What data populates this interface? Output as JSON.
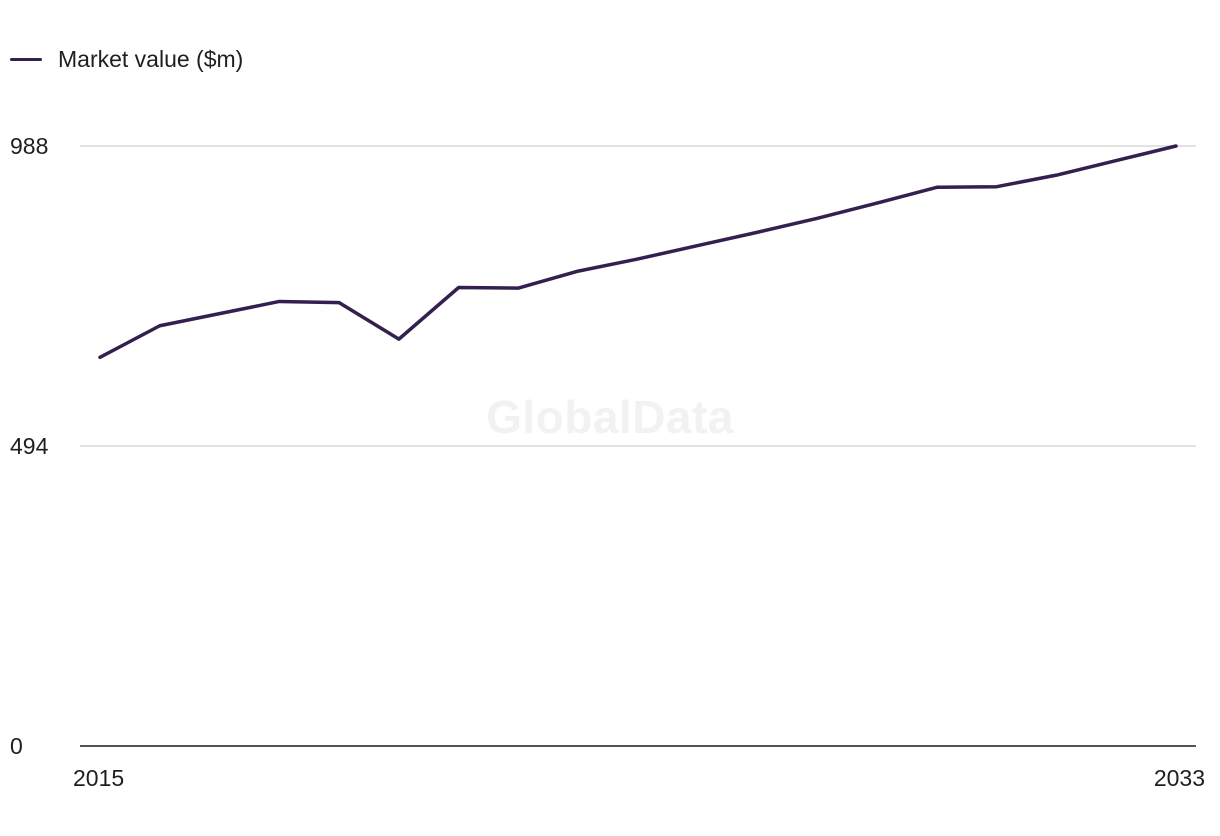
{
  "legend": {
    "label": "Market value ($m)"
  },
  "watermark": "GlobalData",
  "colors": {
    "series": "#33204f",
    "grid": "#d9d9d9",
    "axis": "#1a1a1a"
  },
  "chart_data": {
    "type": "line",
    "title": "",
    "xlabel": "",
    "ylabel": "",
    "x": [
      2015,
      2016,
      2017,
      2018,
      2019,
      2020,
      2021,
      2022,
      2023,
      2024,
      2025,
      2026,
      2027,
      2028,
      2029,
      2030,
      2031,
      2032,
      2033
    ],
    "x_tick_labels": [
      "2015",
      "2033"
    ],
    "y_ticks": [
      0,
      494,
      988
    ],
    "y_tick_labels": [
      "0",
      "494",
      "988"
    ],
    "ylim": [
      0,
      988
    ],
    "grid": true,
    "legend_position": "top-left",
    "series": [
      {
        "name": "Market value ($m)",
        "values": [
          640,
          692,
          712,
          732,
          730,
          670,
          755,
          754,
          782,
          802,
          824,
          846,
          869,
          894,
          920,
          921,
          940,
          964,
          988
        ]
      }
    ]
  }
}
